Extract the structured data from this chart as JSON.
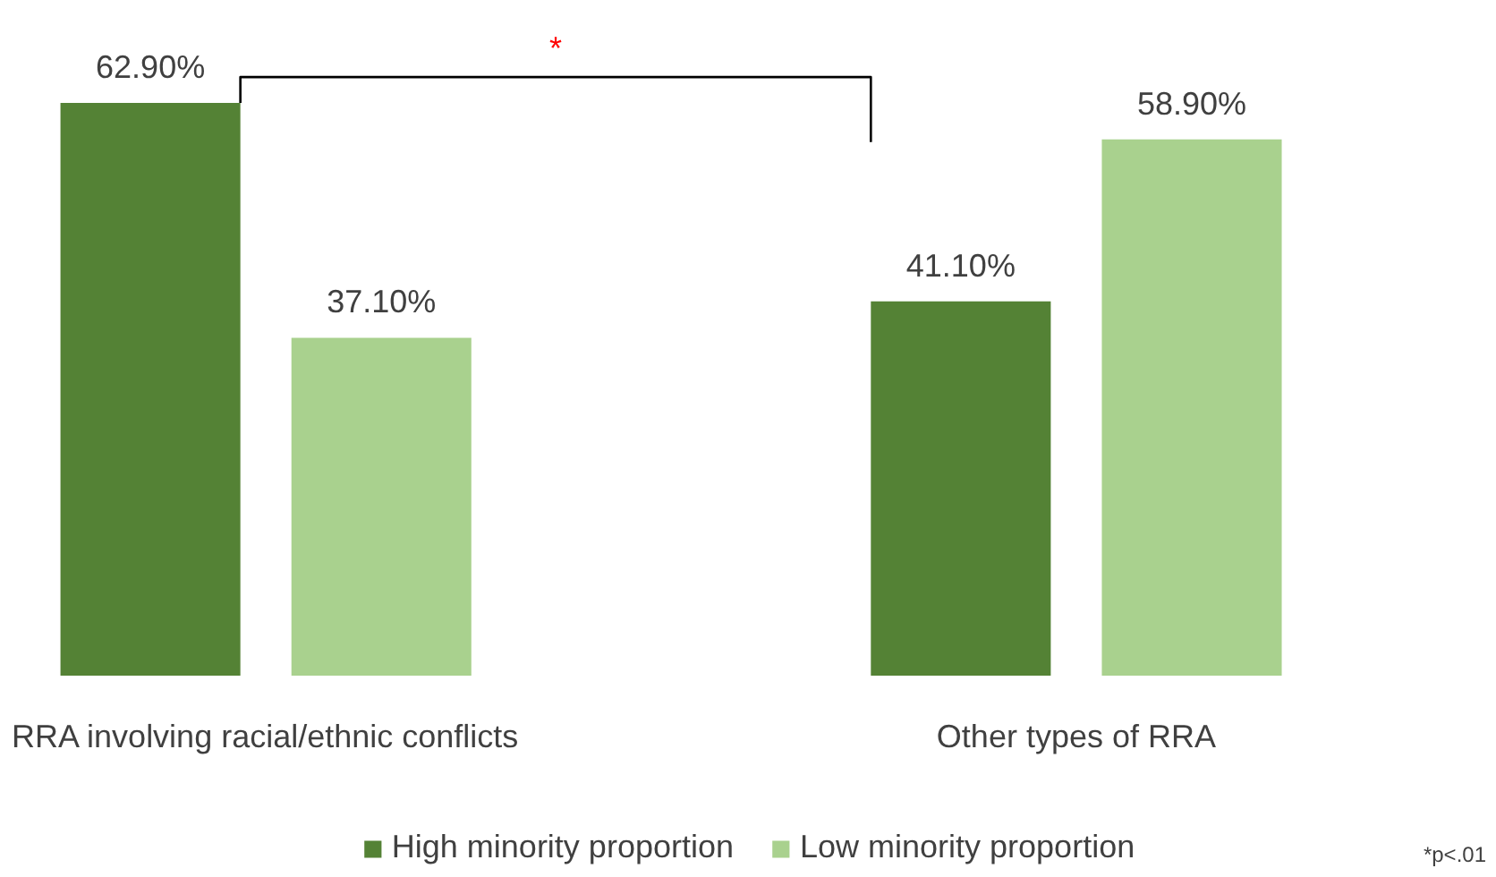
{
  "chart_data": {
    "type": "bar",
    "categories": [
      "RRA involving racial/ethnic conflicts",
      "Other types of RRA"
    ],
    "series": [
      {
        "name": "High minority proportion",
        "color": "#548235",
        "values": [
          62.9,
          41.1
        ],
        "value_labels": [
          "62.90%",
          "41.10%"
        ]
      },
      {
        "name": "Low minority proportion",
        "color": "#a9d18e",
        "values": [
          37.1,
          58.9
        ],
        "value_labels": [
          "37.10%",
          "58.90%"
        ]
      }
    ],
    "annotations": [
      "*",
      "*p<.01"
    ],
    "legend": "bottom"
  }
}
